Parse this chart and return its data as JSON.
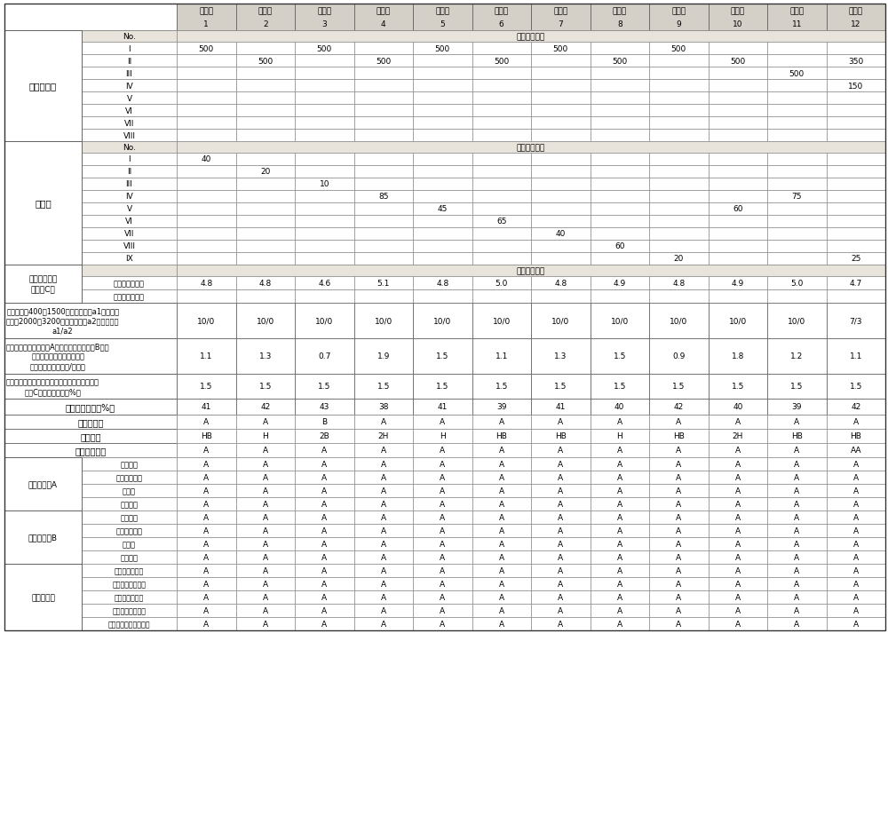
{
  "col_headers_line1": [
    "実施例",
    "実施例",
    "実施例",
    "実施例",
    "実施例",
    "実施例",
    "実施例",
    "実施例",
    "実施例",
    "実施例",
    "実施例",
    "実施例"
  ],
  "col_headers_line2": [
    "1",
    "2",
    "3",
    "4",
    "5",
    "6",
    "7",
    "8",
    "9",
    "10",
    "11",
    "12"
  ],
  "main_agent_label": "主剤涂料液",
  "main_agent_no_labels": [
    "I",
    "II",
    "III",
    "IV",
    "V",
    "VI",
    "VII",
    "VIII"
  ],
  "main_agent_vals": [
    [
      "500",
      "",
      "500",
      "",
      "500",
      "",
      "500",
      "",
      "500",
      "",
      "",
      ""
    ],
    [
      "",
      "500",
      "",
      "500",
      "",
      "500",
      "",
      "500",
      "",
      "500",
      "",
      "350"
    ],
    [
      "",
      "",
      "",
      "",
      "",
      "",
      "",
      "",
      "",
      "",
      "500",
      ""
    ],
    [
      "",
      "",
      "",
      "",
      "",
      "",
      "",
      "",
      "",
      "",
      "",
      "150"
    ],
    [
      "",
      "",
      "",
      "",
      "",
      "",
      "",
      "",
      "",
      "",
      "",
      ""
    ],
    [
      "",
      "",
      "",
      "",
      "",
      "",
      "",
      "",
      "",
      "",
      "",
      ""
    ],
    [
      "",
      "",
      "",
      "",
      "",
      "",
      "",
      "",
      "",
      "",
      "",
      ""
    ],
    [
      "",
      "",
      "",
      "",
      "",
      "",
      "",
      "",
      "",
      "",
      "",
      ""
    ]
  ],
  "hardener_label": "固化剤",
  "hardener_no_labels": [
    "I",
    "II",
    "III",
    "IV",
    "V",
    "VI",
    "VII",
    "VIII",
    "IX"
  ],
  "hardener_vals": [
    [
      "40",
      "",
      "",
      "",
      "",
      "",
      "",
      "",
      "",
      "",
      "",
      ""
    ],
    [
      "",
      "20",
      "",
      "",
      "",
      "",
      "",
      "",
      "",
      "",
      "",
      ""
    ],
    [
      "",
      "",
      "10",
      "",
      "",
      "",
      "",
      "",
      "",
      "",
      "",
      ""
    ],
    [
      "",
      "",
      "",
      "85",
      "",
      "",
      "",
      "",
      "",
      "",
      "75",
      ""
    ],
    [
      "",
      "",
      "",
      "",
      "45",
      "",
      "",
      "",
      "",
      "60",
      "",
      ""
    ],
    [
      "",
      "",
      "",
      "",
      "",
      "65",
      "",
      "",
      "",
      "",
      "",
      ""
    ],
    [
      "",
      "",
      "",
      "",
      "",
      "",
      "40",
      "",
      "",
      "",
      "",
      ""
    ],
    [
      "",
      "",
      "",
      "",
      "",
      "",
      "",
      "60",
      "",
      "",
      "",
      ""
    ],
    [
      "",
      "",
      "",
      "",
      "",
      "",
      "",
      "",
      "20",
      "",
      "",
      "25"
    ]
  ],
  "silane_label": "烷氧基硅烷化\n合物（C）",
  "silane_sub_labels": [
    "环氧硅烷偶联剂",
    "氨基硅烷偶联剂"
  ],
  "silane_vals": [
    [
      "4.8",
      "4.8",
      "4.6",
      "5.1",
      "4.8",
      "5.0",
      "4.8",
      "4.9",
      "4.8",
      "4.9",
      "5.0",
      "4.7"
    ],
    [
      "",
      "",
      "",
      "",
      "",
      "",
      "",
      "",
      "",
      "",
      "",
      ""
    ]
  ],
  "a1a2_label": "环氧当量为400～1500的环氧树脂（a1）与环氧\n当量为2000～3200的环氧树脂（a2）的质量比\na1/a2",
  "a1a2_vals": [
    "10/0",
    "10/0",
    "10/0",
    "10/0",
    "10/0",
    "10/0",
    "10/0",
    "10/0",
    "10/0",
    "10/0",
    "10/0",
    "7/3"
  ],
  "amino_label": "水性环氧类多胺树脂（A）的氨基与化合物（B）的\n（甲基）丙烯酸基的当量比\n（（甲基）丙烯酸基/氨基）",
  "amino_vals": [
    "1.1",
    "1.3",
    "0.7",
    "1.9",
    "1.5",
    "1.1",
    "1.3",
    "1.5",
    "0.9",
    "1.8",
    "1.2",
    "1.1"
  ],
  "solid_label": "水性涂料组合物的固体成分中的烷氧基硅烷化合\n物（C）的含有比例（%）",
  "solid_vals": [
    "1.5",
    "1.5",
    "1.5",
    "1.5",
    "1.5",
    "1.5",
    "1.5",
    "1.5",
    "1.5",
    "1.5",
    "1.5",
    "1.5"
  ],
  "pvc_label": "颜料体积浓度（%）",
  "pvc_vals": [
    "41",
    "42",
    "43",
    "38",
    "41",
    "39",
    "41",
    "40",
    "42",
    "40",
    "39",
    "42"
  ],
  "ltc_label": "低温固化性",
  "ltc_vals": [
    "A",
    "A",
    "B",
    "A",
    "A",
    "A",
    "A",
    "A",
    "A",
    "A",
    "A",
    "A"
  ],
  "ph_label": "铅笔硬度",
  "ph_vals": [
    "HB",
    "H",
    "2B",
    "2H",
    "H",
    "HB",
    "HB",
    "H",
    "HB",
    "2H",
    "HB",
    "HB"
  ],
  "ir_label": "初始耐降雨性",
  "ir_vals": [
    "A",
    "A",
    "A",
    "A",
    "A",
    "A",
    "A",
    "A",
    "A",
    "A",
    "A",
    "AA"
  ],
  "corrA_label": "防腐蚀评价A",
  "corrA_sub_labels": [
    "喷砂钢板",
    "预涂底漆钢板",
    "铝钢板",
    "镀锌钢板"
  ],
  "corrB_label": "防腐蚀评价B",
  "corrB_sub_labels": [
    "喷砂钢板",
    "预涂底漆钢板",
    "铝钢板",
    "镀锌钢板"
  ],
  "topcoat_label": "面涂性评价",
  "topcoat_sub_labels": [
    "油性类涂料面涂",
    "聚氨酯类涂料面涂",
    "环氧类涂料面涂",
    "水性环氧涂料面涂",
    "水性聚氨酯类涂料面涂"
  ],
  "header_bg": "#d4d0c8",
  "subheader_bg": "#e8e4dc",
  "cell_bg": "#ffffff",
  "border_dark": "#555555",
  "border_light": "#999999"
}
